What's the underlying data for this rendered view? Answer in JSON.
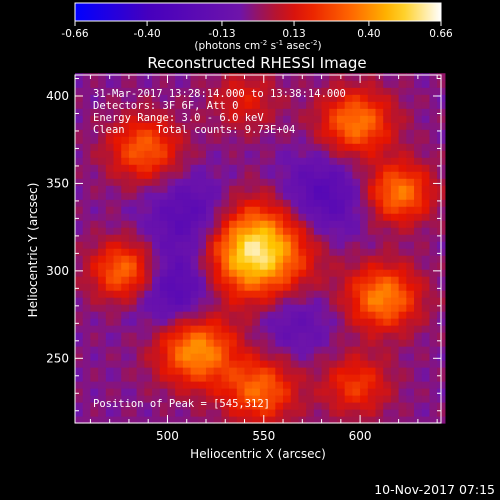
{
  "chart_data": {
    "type": "heatmap",
    "title": "Reconstructed RHESSI Image",
    "xlabel": "Heliocentric X (arcsec)",
    "ylabel": "Heliocentric Y (arcsec)",
    "xlim": [
      452,
      642
    ],
    "ylim": [
      213,
      412
    ],
    "x_ticks": [
      500,
      550,
      600
    ],
    "y_ticks": [
      250,
      300,
      350,
      400
    ],
    "colorbar": {
      "range": [
        -0.66,
        0.66
      ],
      "ticks": [
        "-0.66",
        "-0.40",
        "-0.13",
        "0.13",
        "0.40",
        "0.66"
      ],
      "unit_label": "(photons cm",
      "unit_exp1": "-2",
      "unit_mid": " s",
      "unit_exp2": "-1",
      "unit_mid2": " asec",
      "unit_exp3": "-2",
      "unit_end": ")"
    },
    "annotations": [
      "31-Mar-2017 13:28:14.000 to 13:38:14.000",
      "Detectors: 3F 6F, Att 0",
      "Energy Range: 3.0 - 6.0 keV",
      "Clean     Total counts: 9.73E+04"
    ],
    "peak_label": "Position of Peak = [545,312]",
    "peak": [
      545,
      312
    ],
    "features": [
      {
        "x": 545,
        "y": 312,
        "sigma": 19,
        "amp": 0.66
      },
      {
        "x": 598,
        "y": 385,
        "sigma": 13,
        "amp": 0.4
      },
      {
        "x": 620,
        "y": 345,
        "sigma": 12,
        "amp": 0.4
      },
      {
        "x": 612,
        "y": 285,
        "sigma": 13,
        "amp": 0.42
      },
      {
        "x": 548,
        "y": 232,
        "sigma": 13,
        "amp": 0.36
      },
      {
        "x": 515,
        "y": 255,
        "sigma": 14,
        "amp": 0.46
      },
      {
        "x": 478,
        "y": 300,
        "sigma": 12,
        "amp": 0.4
      },
      {
        "x": 488,
        "y": 370,
        "sigma": 13,
        "amp": 0.34
      },
      {
        "x": 598,
        "y": 235,
        "sigma": 12,
        "amp": 0.26
      },
      {
        "x": 540,
        "y": 398,
        "sigma": 12,
        "amp": 0.18
      },
      {
        "x": 515,
        "y": 330,
        "sigma": 16,
        "amp": -0.26
      },
      {
        "x": 580,
        "y": 342,
        "sigma": 16,
        "amp": -0.24
      },
      {
        "x": 505,
        "y": 290,
        "sigma": 16,
        "amp": -0.26
      },
      {
        "x": 565,
        "y": 272,
        "sigma": 14,
        "amp": -0.14
      }
    ],
    "background_level": -0.03
  },
  "timestamp": "10-Nov-2017 07:15"
}
